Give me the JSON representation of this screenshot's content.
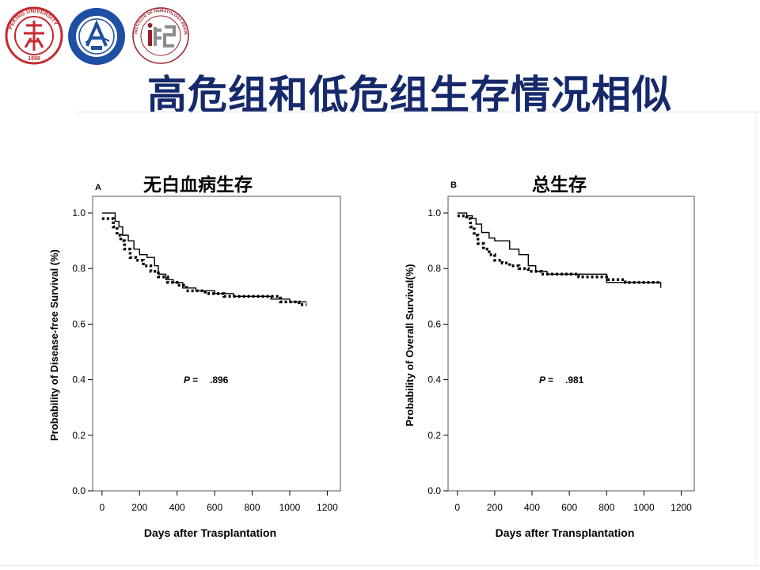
{
  "slide": {
    "title": "高危组和低危组生存情况相似",
    "logos": [
      "peking-university-seal",
      "peking-university-peoples-hospital-seal",
      "institute-of-hematology-logo"
    ],
    "logo_text": {
      "pku": "PEKING UNIVERSITY 1898",
      "ihb": "INSTITUTE OF HEMATOLOGY PEKING UNIVERSITY"
    }
  },
  "chart_data": [
    {
      "type": "line",
      "panel_label": "A",
      "title": "无白血病生存",
      "xlabel": "Days after Trasplantation",
      "ylabel": "Probability of Disease-free Survival (%)",
      "xlim": [
        -50,
        1270
      ],
      "ylim": [
        0,
        1.06
      ],
      "xticks": [
        "0",
        "200",
        "400",
        "600",
        "800",
        "1000",
        "1200"
      ],
      "yticks": [
        "0.0",
        "0.2",
        "0.4",
        "0.6",
        "0.8",
        "1.0"
      ],
      "annotation": {
        "label": "P =",
        "value": ".896"
      },
      "grid": false,
      "series": [
        {
          "style": "solid",
          "x": [
            0,
            50,
            70,
            90,
            110,
            140,
            170,
            200,
            240,
            280,
            300,
            340,
            380,
            430,
            500,
            600,
            700,
            800,
            900,
            1000,
            1090
          ],
          "y": [
            1.0,
            1.0,
            0.97,
            0.95,
            0.92,
            0.9,
            0.87,
            0.85,
            0.84,
            0.81,
            0.78,
            0.76,
            0.75,
            0.73,
            0.72,
            0.71,
            0.7,
            0.7,
            0.69,
            0.68,
            0.68
          ]
        },
        {
          "style": "dotted",
          "x": [
            0,
            40,
            60,
            80,
            100,
            120,
            150,
            180,
            220,
            260,
            300,
            350,
            400,
            450,
            550,
            650,
            750,
            850,
            950,
            1050,
            1090
          ],
          "y": [
            0.98,
            0.98,
            0.95,
            0.92,
            0.9,
            0.87,
            0.84,
            0.83,
            0.81,
            0.79,
            0.77,
            0.75,
            0.74,
            0.72,
            0.71,
            0.7,
            0.7,
            0.7,
            0.68,
            0.67,
            0.67
          ]
        }
      ]
    },
    {
      "type": "line",
      "panel_label": "B",
      "title": "总生存",
      "xlabel": "Days after Transplantation",
      "ylabel": "Probability of Overall Survival(%)",
      "xlim": [
        -50,
        1270
      ],
      "ylim": [
        0,
        1.06
      ],
      "xticks": [
        "0",
        "200",
        "400",
        "600",
        "800",
        "1000",
        "1200"
      ],
      "yticks": [
        "0.0",
        "0.2",
        "0.4",
        "0.6",
        "0.8",
        "1.0"
      ],
      "annotation": {
        "label": "P =",
        "value": ".981"
      },
      "grid": false,
      "series": [
        {
          "style": "solid",
          "x": [
            0,
            50,
            80,
            100,
            130,
            170,
            200,
            280,
            330,
            380,
            420,
            480,
            550,
            700,
            800,
            900,
            1000,
            1090
          ],
          "y": [
            1.0,
            0.99,
            0.98,
            0.96,
            0.93,
            0.91,
            0.9,
            0.87,
            0.85,
            0.81,
            0.79,
            0.78,
            0.78,
            0.78,
            0.75,
            0.75,
            0.75,
            0.73
          ]
        },
        {
          "style": "dotted",
          "x": [
            0,
            50,
            70,
            90,
            110,
            140,
            170,
            200,
            240,
            280,
            330,
            380,
            450,
            550,
            650,
            700,
            800,
            900,
            1000,
            1090
          ],
          "y": [
            0.99,
            0.98,
            0.95,
            0.92,
            0.89,
            0.87,
            0.85,
            0.83,
            0.82,
            0.81,
            0.8,
            0.79,
            0.78,
            0.78,
            0.77,
            0.77,
            0.76,
            0.75,
            0.75,
            0.75
          ]
        }
      ]
    }
  ]
}
